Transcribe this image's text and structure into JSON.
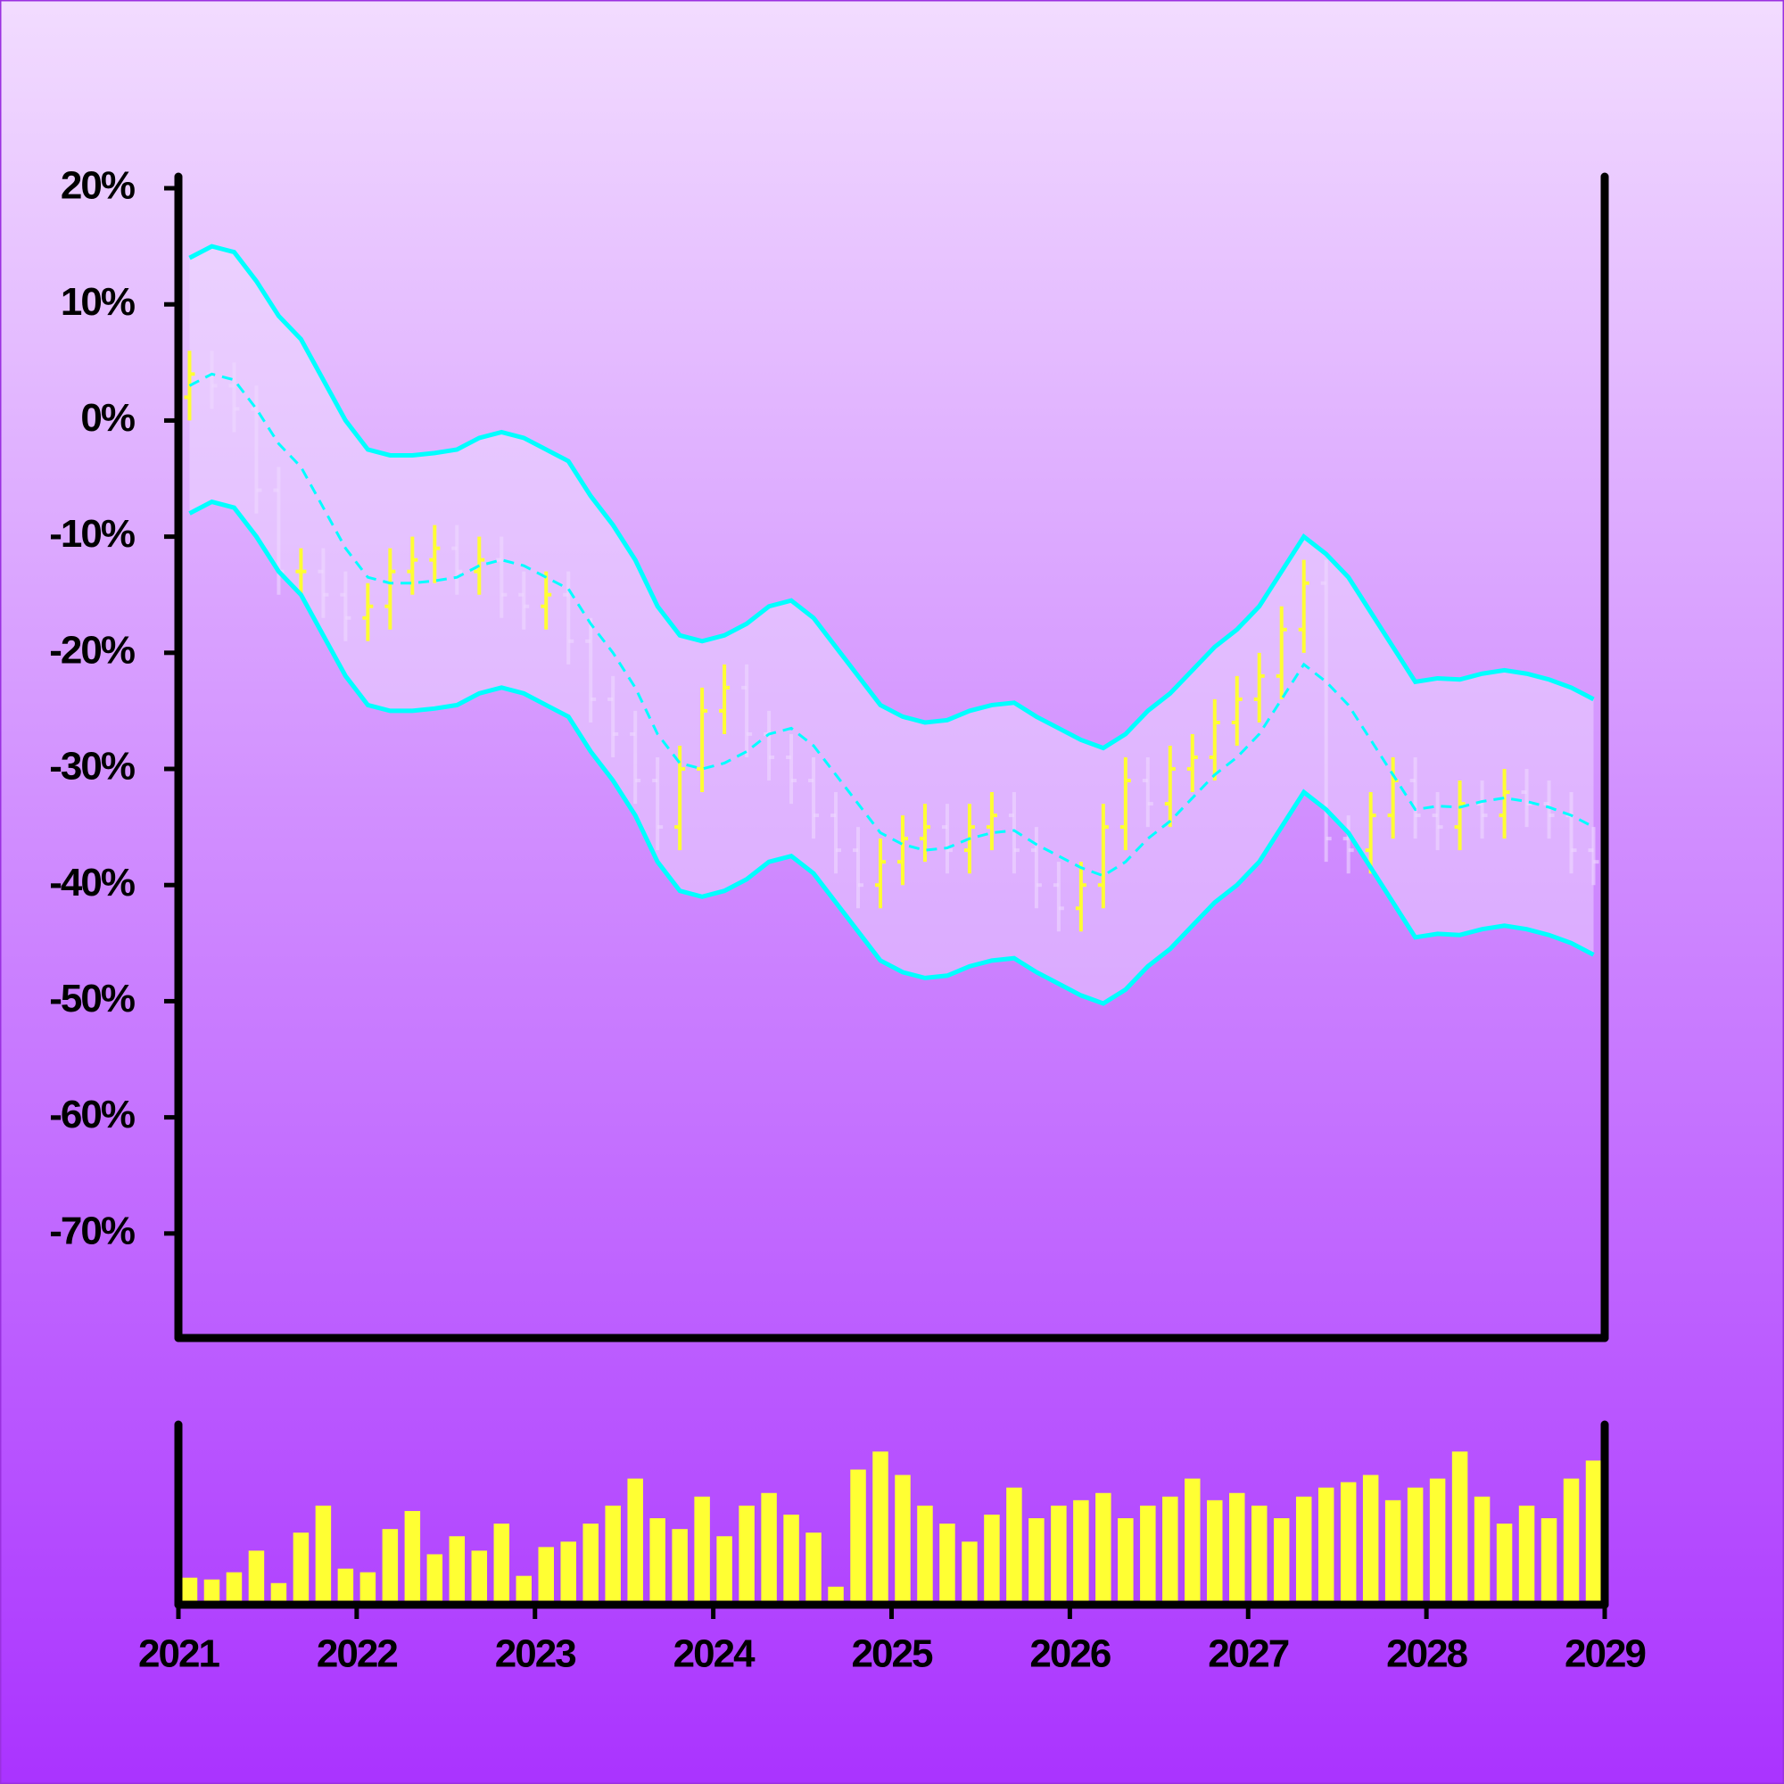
{
  "chart_data": [
    {
      "type": "ohlc",
      "x": [
        2021.0625,
        2021.1875,
        2021.3125,
        2021.4375,
        2021.5625,
        2021.6875,
        2021.8125,
        2021.9375,
        2022.0625,
        2022.1875,
        2022.3125,
        2022.4375,
        2022.5625,
        2022.6875,
        2022.8125,
        2022.9375,
        2023.0625,
        2023.1875,
        2023.3125,
        2023.4375,
        2023.5625,
        2023.6875,
        2023.8125,
        2023.9375,
        2024.0625,
        2024.1875,
        2024.3125,
        2024.4375,
        2024.5625,
        2024.6875,
        2024.8125,
        2024.9375,
        2025.0625,
        2025.1875,
        2025.3125,
        2025.4375,
        2025.5625,
        2025.6875,
        2025.8125,
        2025.9375,
        2026.0625,
        2026.1875,
        2026.3125,
        2026.4375,
        2026.5625,
        2026.6875,
        2026.8125,
        2026.9375,
        2027.0625,
        2027.1875,
        2027.3125,
        2027.4375,
        2027.5625,
        2027.6875,
        2027.8125,
        2027.9375,
        2028.0625,
        2028.1875,
        2028.3125,
        2028.4375,
        2028.5625,
        2028.6875,
        2028.8125,
        2028.9375
      ],
      "open": [
        2,
        4,
        3,
        1,
        -6,
        -13,
        -13,
        -15,
        -17,
        -16,
        -13,
        -12,
        -11,
        -13,
        -12,
        -15,
        -16,
        -15,
        -19,
        -24,
        -27,
        -31,
        -35,
        -30,
        -25,
        -23,
        -27,
        -29,
        -31,
        -34,
        -37,
        -40,
        -38,
        -36,
        -35,
        -37,
        -35,
        -34,
        -37,
        -40,
        -42,
        -40,
        -35,
        -31,
        -33,
        -30,
        -29,
        -26,
        -24,
        -22,
        -18,
        -14,
        -36,
        -37,
        -34,
        -31,
        -34,
        -35,
        -33,
        -34,
        -32,
        -33,
        -34,
        -37
      ],
      "high": [
        6,
        6,
        5,
        3,
        -4,
        -11,
        -11,
        -13,
        -14,
        -11,
        -10,
        -9,
        -9,
        -10,
        -10,
        -13,
        -13,
        -13,
        -17,
        -22,
        -25,
        -29,
        -28,
        -23,
        -21,
        -21,
        -25,
        -27,
        -29,
        -32,
        -35,
        -36,
        -34,
        -33,
        -33,
        -33,
        -32,
        -32,
        -35,
        -38,
        -38,
        -33,
        -29,
        -29,
        -28,
        -27,
        -24,
        -22,
        -20,
        -16,
        -12,
        -12,
        -34,
        -32,
        -29,
        -29,
        -32,
        -31,
        -31,
        -30,
        -30,
        -31,
        -32,
        -35
      ],
      "low": [
        0,
        1,
        -1,
        -8,
        -15,
        -15,
        -17,
        -19,
        -19,
        -18,
        -15,
        -14,
        -15,
        -15,
        -17,
        -18,
        -18,
        -21,
        -26,
        -29,
        -33,
        -37,
        -37,
        -32,
        -27,
        -29,
        -31,
        -33,
        -36,
        -39,
        -42,
        -42,
        -40,
        -38,
        -39,
        -39,
        -37,
        -39,
        -42,
        -44,
        -44,
        -42,
        -37,
        -35,
        -35,
        -32,
        -31,
        -28,
        -26,
        -24,
        -20,
        -38,
        -39,
        -39,
        -36,
        -36,
        -37,
        -37,
        -36,
        -36,
        -35,
        -36,
        -39,
        -40
      ],
      "close": [
        4,
        3,
        1,
        -6,
        -13,
        -13,
        -15,
        -17,
        -16,
        -13,
        -12,
        -11,
        -13,
        -12,
        -15,
        -16,
        -15,
        -19,
        -24,
        -27,
        -31,
        -35,
        -30,
        -25,
        -23,
        -27,
        -29,
        -31,
        -34,
        -37,
        -40,
        -38,
        -36,
        -35,
        -37,
        -35,
        -34,
        -37,
        -40,
        -42,
        -40,
        -35,
        -31,
        -33,
        -30,
        -29,
        -26,
        -24,
        -22,
        -18,
        -14,
        -36,
        -37,
        -34,
        -31,
        -34,
        -35,
        -33,
        -34,
        -32,
        -33,
        -34,
        -37,
        -38
      ],
      "up_color": "#ffff33",
      "down_color": "#eed8ff",
      "bands": {
        "color": "#00ffff",
        "fill": "#f0e0ff",
        "upper": [
          14,
          15,
          14.5,
          12,
          9,
          7,
          3.5,
          0,
          -2.5,
          -3,
          -3,
          -2.8,
          -2.5,
          -1.5,
          -1,
          -1.5,
          -2.5,
          -3.5,
          -6.5,
          -9,
          -12,
          -16,
          -18.5,
          -19,
          -18.5,
          -17.5,
          -16,
          -15.5,
          -17,
          -19.5,
          -22,
          -24.5,
          -25.5,
          -26,
          -25.8,
          -25,
          -24.5,
          -24.3,
          -25.5,
          -26.5,
          -27.5,
          -28.2,
          -27,
          -25,
          -23.5,
          -21.5,
          -19.5,
          -18,
          -16,
          -13,
          -10,
          -11.5,
          -13.5,
          -16.5,
          -19.5,
          -22.5,
          -22.2,
          -22.3,
          -21.8,
          -21.5,
          -21.8,
          -22.3,
          -23,
          -24
        ],
        "middle": [
          3,
          4,
          3.5,
          1,
          -2,
          -4,
          -7.5,
          -11,
          -13.5,
          -14,
          -14,
          -13.8,
          -13.5,
          -12.5,
          -12,
          -12.5,
          -13.5,
          -14.5,
          -17.5,
          -20,
          -23,
          -27,
          -29.5,
          -30,
          -29.5,
          -28.5,
          -27,
          -26.5,
          -28,
          -30.5,
          -33,
          -35.5,
          -36.5,
          -37,
          -36.8,
          -36,
          -35.5,
          -35.3,
          -36.5,
          -37.5,
          -38.5,
          -39.2,
          -38,
          -36,
          -34.5,
          -32.5,
          -30.5,
          -29,
          -27,
          -24,
          -21,
          -22.5,
          -24.5,
          -27.5,
          -30.5,
          -33.5,
          -33.2,
          -33.3,
          -32.8,
          -32.5,
          -32.8,
          -33.3,
          -34,
          -35
        ],
        "lower": [
          -8,
          -7,
          -7.5,
          -10,
          -13,
          -15,
          -18.5,
          -22,
          -24.5,
          -25,
          -25,
          -24.8,
          -24.5,
          -23.5,
          -23,
          -23.5,
          -24.5,
          -25.5,
          -28.5,
          -31,
          -34,
          -38,
          -40.5,
          -41,
          -40.5,
          -39.5,
          -38,
          -37.5,
          -39,
          -41.5,
          -44,
          -46.5,
          -47.5,
          -48,
          -47.8,
          -47,
          -46.5,
          -46.3,
          -47.5,
          -48.5,
          -49.5,
          -50.2,
          -49,
          -47,
          -45.5,
          -43.5,
          -41.5,
          -40,
          -38,
          -35,
          -32,
          -33.5,
          -35.5,
          -38.5,
          -41.5,
          -44.5,
          -44.2,
          -44.3,
          -43.8,
          -43.5,
          -43.8,
          -44.3,
          -45,
          -46
        ]
      },
      "xlim": [
        2021,
        2029
      ],
      "ylim": [
        -79,
        21
      ],
      "yticks": [
        {
          "value": 20,
          "label": "20%"
        },
        {
          "value": 10,
          "label": "10%"
        },
        {
          "value": 0,
          "label": "0%"
        },
        {
          "value": -10,
          "label": "-10%"
        },
        {
          "value": -20,
          "label": "-20%"
        },
        {
          "value": -30,
          "label": "-30%"
        },
        {
          "value": -40,
          "label": "-40%"
        },
        {
          "value": -50,
          "label": "-50%"
        },
        {
          "value": -60,
          "label": "-60%"
        },
        {
          "value": -70,
          "label": "-70%"
        }
      ]
    },
    {
      "type": "bar",
      "x": [
        2021.0625,
        2021.1875,
        2021.3125,
        2021.4375,
        2021.5625,
        2021.6875,
        2021.8125,
        2021.9375,
        2022.0625,
        2022.1875,
        2022.3125,
        2022.4375,
        2022.5625,
        2022.6875,
        2022.8125,
        2022.9375,
        2023.0625,
        2023.1875,
        2023.3125,
        2023.4375,
        2023.5625,
        2023.6875,
        2023.8125,
        2023.9375,
        2024.0625,
        2024.1875,
        2024.3125,
        2024.4375,
        2024.5625,
        2024.6875,
        2024.8125,
        2024.9375,
        2025.0625,
        2025.1875,
        2025.3125,
        2025.4375,
        2025.5625,
        2025.6875,
        2025.8125,
        2025.9375,
        2026.0625,
        2026.1875,
        2026.3125,
        2026.4375,
        2026.5625,
        2026.6875,
        2026.8125,
        2026.9375,
        2027.0625,
        2027.1875,
        2027.3125,
        2027.4375,
        2027.5625,
        2027.6875,
        2027.8125,
        2027.9375,
        2028.0625,
        2028.1875,
        2028.3125,
        2028.4375,
        2028.5625,
        2028.6875,
        2028.8125,
        2028.9375
      ],
      "values": [
        15,
        14,
        18,
        30,
        12,
        40,
        55,
        20,
        18,
        42,
        52,
        28,
        38,
        30,
        45,
        16,
        32,
        35,
        45,
        55,
        70,
        48,
        42,
        60,
        38,
        55,
        62,
        50,
        40,
        10,
        75,
        85,
        72,
        55,
        45,
        35,
        50,
        65,
        48,
        55,
        58,
        62,
        48,
        55,
        60,
        70,
        58,
        62,
        55,
        48,
        60,
        65,
        68,
        72,
        58,
        65,
        70,
        85,
        60,
        45,
        55,
        48,
        70,
        80
      ],
      "color": "#ffff33",
      "xlim": [
        2021,
        2029
      ],
      "ylim": [
        0,
        100
      ],
      "xticks": [
        2021,
        2022,
        2023,
        2024,
        2025,
        2026,
        2027,
        2028,
        2029
      ]
    }
  ]
}
